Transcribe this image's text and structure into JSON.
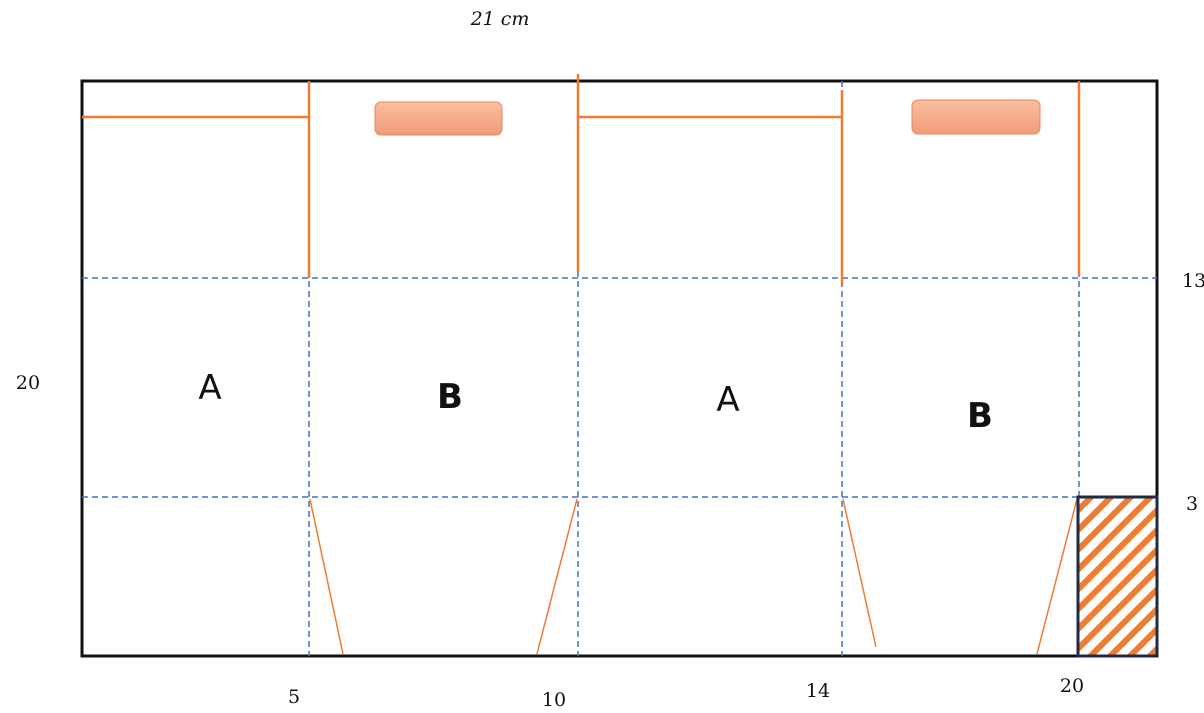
{
  "dimensions": {
    "top_width": "21 cm",
    "left_height": "20",
    "right_13": "13",
    "right_3": "3",
    "bottom_5": "5",
    "bottom_10": "10",
    "bottom_14": "14",
    "bottom_20": "20"
  },
  "panels": {
    "panel_1": "A",
    "panel_2": "B",
    "panel_3": "A",
    "panel_4": "B"
  },
  "colors": {
    "outline": "#111111",
    "cut_line": "#ED7D31",
    "fold_line": "#4472C4",
    "handle_fill": "#F4A582",
    "hatch": "#ED7D31",
    "hatch_border": "#1F2A44"
  }
}
